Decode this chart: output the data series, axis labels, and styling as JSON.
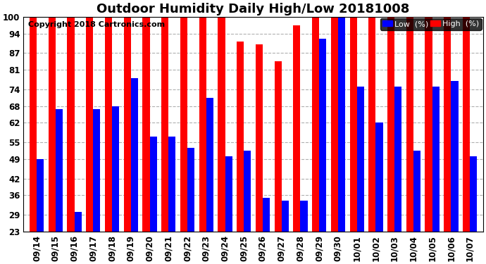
{
  "title": "Outdoor Humidity Daily High/Low 20181008",
  "copyright": "Copyright 2018 Cartronics.com",
  "background_color": "#ffffff",
  "plot_bg_color": "#ffffff",
  "ylim": [
    23,
    100
  ],
  "yticks": [
    23,
    29,
    36,
    42,
    49,
    55,
    62,
    68,
    74,
    81,
    87,
    94,
    100
  ],
  "dates": [
    "09/14",
    "09/15",
    "09/16",
    "09/17",
    "09/18",
    "09/19",
    "09/20",
    "09/21",
    "09/22",
    "09/23",
    "09/24",
    "09/25",
    "09/26",
    "09/27",
    "09/28",
    "09/29",
    "09/30",
    "10/01",
    "10/02",
    "10/03",
    "10/04",
    "10/05",
    "10/06",
    "10/07"
  ],
  "high": [
    100,
    100,
    100,
    100,
    100,
    100,
    100,
    100,
    100,
    100,
    100,
    91,
    90,
    84,
    97,
    100,
    100,
    100,
    100,
    100,
    100,
    100,
    100,
    100
  ],
  "low": [
    49,
    67,
    30,
    67,
    68,
    78,
    57,
    57,
    53,
    71,
    50,
    52,
    35,
    34,
    34,
    92,
    100,
    75,
    62,
    75,
    52,
    75,
    77,
    50
  ],
  "high_color": "#ff0000",
  "low_color": "#0000ff",
  "legend_low_label": "Low  (%)",
  "legend_high_label": "High  (%)",
  "grid_color": "#b0b0b0",
  "title_fontsize": 13,
  "tick_fontsize": 8.5,
  "copyright_fontsize": 8
}
